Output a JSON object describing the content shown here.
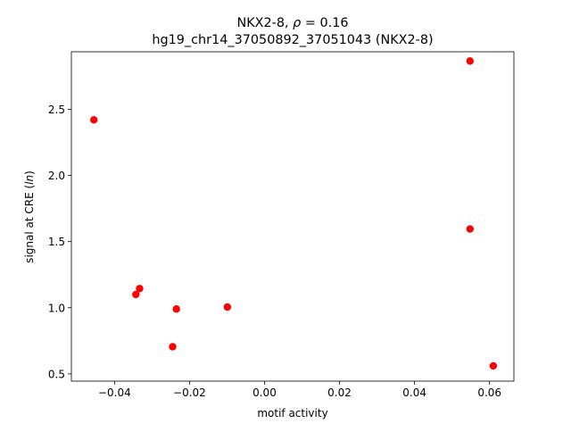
{
  "chart_data": {
    "type": "scatter",
    "title_line1_prefix": "NKX2-8, ",
    "title_line1_rho": "ρ",
    "title_line1_suffix": " = 0.16",
    "title_line2": "hg19_chr14_37050892_37051043 (NKX2-8)",
    "xlabel": "motif activity",
    "ylabel_prefix": "signal at CRE (",
    "ylabel_italic": "ln",
    "ylabel_suffix": ")",
    "xlim": [
      -0.0515,
      0.0665
    ],
    "ylim": [
      0.445,
      2.935
    ],
    "x_ticks": [
      -0.04,
      -0.02,
      0.0,
      0.02,
      0.04,
      0.06
    ],
    "x_tick_labels": [
      "−0.04",
      "−0.02",
      "0.00",
      "0.02",
      "0.04",
      "0.06"
    ],
    "y_ticks": [
      0.5,
      1.0,
      1.5,
      2.0,
      2.5
    ],
    "y_tick_labels": [
      "0.5",
      "1.0",
      "1.5",
      "2.0",
      "2.5"
    ],
    "grid": false,
    "marker_color": "#ff0000",
    "points": [
      {
        "x": -0.0455,
        "y": 2.42
      },
      {
        "x": -0.0343,
        "y": 1.1
      },
      {
        "x": -0.0333,
        "y": 1.145
      },
      {
        "x": -0.0245,
        "y": 0.705
      },
      {
        "x": -0.0235,
        "y": 0.99
      },
      {
        "x": -0.0099,
        "y": 1.005
      },
      {
        "x": 0.0548,
        "y": 2.865
      },
      {
        "x": 0.0548,
        "y": 1.595
      },
      {
        "x": 0.061,
        "y": 0.56
      }
    ]
  }
}
